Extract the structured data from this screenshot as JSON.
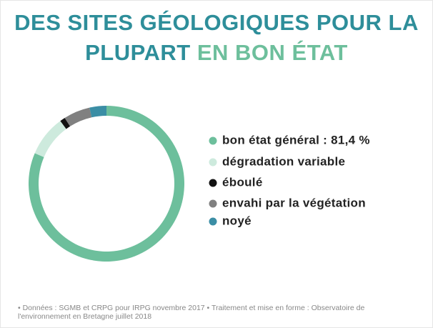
{
  "chart_data": {
    "type": "donut",
    "title_parts": [
      "DES SITES GÉOLOGIQUES POUR LA",
      "PLUPART",
      "EN BON ÉTAT"
    ],
    "categories": [
      "bon état général : 81,4 %",
      "dégradation variable",
      "éboulé",
      "envahi par la végétation",
      "noyé"
    ],
    "values": [
      81.4,
      8.5,
      1.1,
      5.5,
      3.5
    ],
    "colors": [
      "#6dbf9c",
      "#cdeadd",
      "#111111",
      "#808080",
      "#3b8ea5"
    ],
    "title_colors": [
      "#2e8e9a",
      "#2e8e9a",
      "#6dbf9c"
    ],
    "source": "• Données : SGMB et CRPG pour IRPG novembre 2017 • Traitement et mise en forme : Observatoire de l'environnement en Bretagne juillet 2018"
  }
}
